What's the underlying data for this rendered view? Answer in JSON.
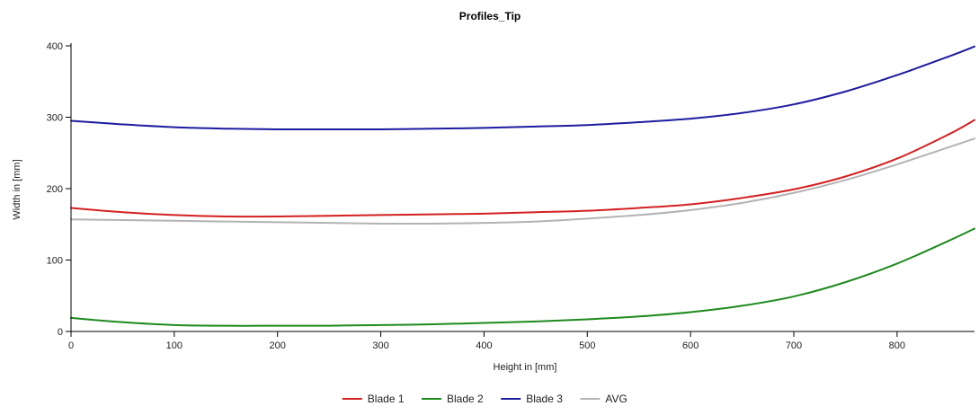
{
  "chart_data": {
    "type": "line",
    "title": "Profiles_Tip",
    "xlabel": "Height in [mm]",
    "ylabel": "Width in [mm]",
    "xlim": [
      0,
      875
    ],
    "ylim": [
      0,
      400
    ],
    "x_ticks": [
      0,
      100,
      200,
      300,
      400,
      500,
      600,
      700,
      800
    ],
    "y_ticks": [
      0,
      100,
      200,
      300,
      400
    ],
    "grid": false,
    "legend_position": "bottom-center",
    "x": [
      0,
      50,
      100,
      150,
      200,
      250,
      300,
      350,
      400,
      450,
      500,
      550,
      600,
      650,
      700,
      750,
      800,
      850,
      875
    ],
    "series": [
      {
        "name": "Blade 1",
        "color": "#d42020",
        "values": [
          173,
          167,
          163,
          161,
          161,
          162,
          163,
          164,
          165,
          167,
          169,
          173,
          178,
          187,
          199,
          217,
          242,
          276,
          296
        ]
      },
      {
        "name": "Blade 2",
        "color": "#1e8a1e",
        "values": [
          19,
          13,
          9,
          8,
          8,
          8,
          9,
          10,
          12,
          14,
          17,
          21,
          27,
          36,
          49,
          69,
          95,
          127,
          144
        ]
      },
      {
        "name": "Blade 3",
        "color": "#1c1ca0",
        "values": [
          295,
          290,
          286,
          284,
          283,
          283,
          283,
          284,
          285,
          287,
          289,
          293,
          298,
          306,
          318,
          336,
          359,
          385,
          399
        ]
      },
      {
        "name": "AVG",
        "color": "#b3b3b3",
        "values": [
          157,
          156,
          155,
          154,
          153,
          152,
          151,
          151,
          152,
          154,
          158,
          163,
          170,
          180,
          194,
          212,
          234,
          258,
          270
        ]
      }
    ]
  }
}
